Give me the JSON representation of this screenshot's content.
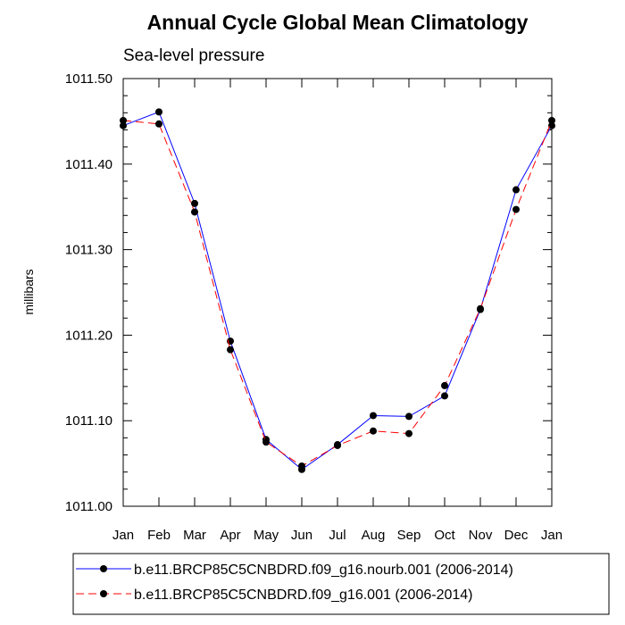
{
  "chart_data": {
    "type": "line",
    "title": "Annual Cycle Global Mean Climatology",
    "subtitle": "Sea-level pressure",
    "xlabel": "",
    "ylabel": "millibars",
    "categories": [
      "Jan",
      "Feb",
      "Mar",
      "Apr",
      "May",
      "Jun",
      "Jul",
      "Aug",
      "Sep",
      "Oct",
      "Nov",
      "Dec",
      "Jan"
    ],
    "ylim": [
      1011.0,
      1011.5
    ],
    "yticks": [
      1011.0,
      1011.1,
      1011.2,
      1011.3,
      1011.4,
      1011.5
    ],
    "ytick_labels": [
      "1011.00",
      "1011.10",
      "1011.20",
      "1011.30",
      "1011.40",
      "1011.50"
    ],
    "grid": false,
    "legend_position": "bottom",
    "series": [
      {
        "name": "b.e11.BRCP85C5CNBDRD.f09_g16.nourb.001 (2006-2014)",
        "color": "#0000ff",
        "dash": "solid",
        "values": [
          1011.445,
          1011.461,
          1011.354,
          1011.193,
          1011.078,
          1011.043,
          1011.072,
          1011.106,
          1011.105,
          1011.129,
          1011.23,
          1011.37,
          1011.445
        ]
      },
      {
        "name": "b.e11.BRCP85C5CNBDRD.f09_g16.001 (2006-2014)",
        "color": "#ff0000",
        "dash": "dashed",
        "values": [
          1011.451,
          1011.447,
          1011.344,
          1011.183,
          1011.075,
          1011.047,
          1011.071,
          1011.088,
          1011.085,
          1011.141,
          1011.231,
          1011.347,
          1011.451
        ]
      }
    ]
  }
}
